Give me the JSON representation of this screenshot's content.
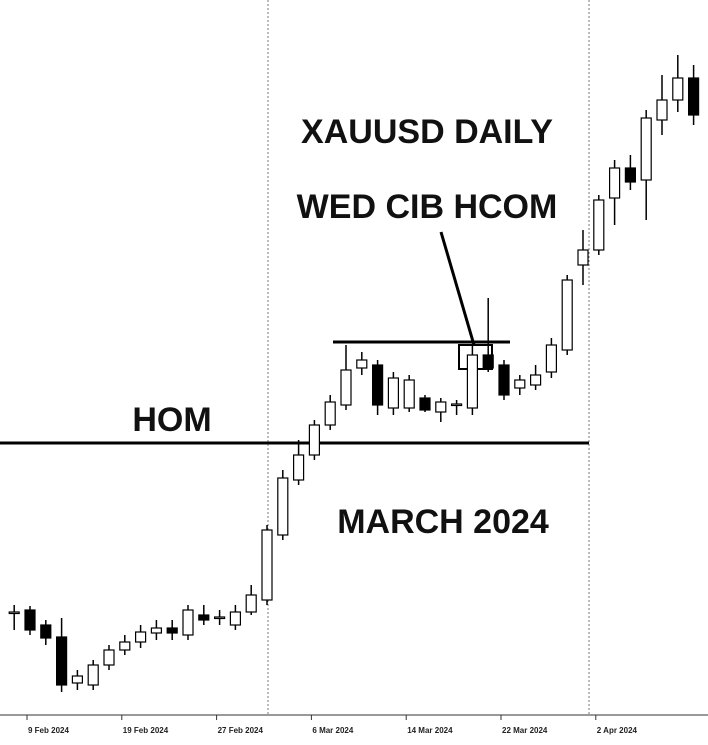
{
  "chart_data": {
    "type": "candlestick",
    "annotations": [
      "XAUUSD DAILY",
      "WED CIB HCOM",
      "HOM",
      "MARCH 2024"
    ],
    "categories": [
      null,
      "9 Feb 2024",
      null,
      null,
      null,
      null,
      null,
      "19 Feb 2024",
      null,
      null,
      null,
      null,
      null,
      "27 Feb 2024",
      null,
      null,
      null,
      null,
      null,
      "6 Mar 2024",
      null,
      null,
      null,
      null,
      null,
      "14 Mar 2024",
      null,
      null,
      null,
      null,
      null,
      "22 Mar 2024",
      null,
      null,
      null,
      null,
      null,
      "2 Apr 2024",
      null,
      null,
      null,
      null,
      null,
      null
    ],
    "open": [
      1863,
      1865,
      1850,
      1838,
      1792,
      1790,
      1810,
      1825,
      1833,
      1842,
      1847,
      1840,
      1860,
      1857,
      1850,
      1863,
      1875,
      1940,
      1995,
      2020,
      2050,
      2070,
      2107,
      2110,
      2067,
      2067,
      2077,
      2063,
      2070,
      2067,
      2120,
      2110,
      2087,
      2090,
      2103,
      2125,
      2210,
      2225,
      2277,
      2307,
      2295,
      2355,
      2375,
      2397
    ],
    "high": [
      1870,
      1869,
      1855,
      1857,
      1805,
      1815,
      1830,
      1840,
      1850,
      1855,
      1855,
      1870,
      1870,
      1865,
      1870,
      1890,
      1950,
      2005,
      2035,
      2055,
      2080,
      2130,
      2123,
      2115,
      2103,
      2100,
      2080,
      2077,
      2075,
      2130,
      2177,
      2115,
      2100,
      2110,
      2137,
      2200,
      2245,
      2280,
      2315,
      2320,
      2365,
      2400,
      2420,
      2410
    ],
    "low": [
      1845,
      1840,
      1830,
      1783,
      1785,
      1785,
      1805,
      1820,
      1827,
      1835,
      1835,
      1835,
      1850,
      1850,
      1845,
      1860,
      1870,
      1935,
      1990,
      2015,
      2045,
      2065,
      2100,
      2060,
      2060,
      2063,
      2063,
      2053,
      2060,
      2060,
      2103,
      2075,
      2080,
      2085,
      2097,
      2120,
      2190,
      2220,
      2250,
      2285,
      2255,
      2340,
      2363,
      2350
    ],
    "close": [
      1863,
      1845,
      1837,
      1790,
      1799,
      1810,
      1825,
      1833,
      1843,
      1847,
      1842,
      1865,
      1855,
      1858,
      1863,
      1880,
      1945,
      1997,
      2020,
      2050,
      2073,
      2105,
      2115,
      2070,
      2097,
      2095,
      2065,
      2073,
      2071,
      2120,
      2107,
      2080,
      2095,
      2100,
      2130,
      2195,
      2225,
      2275,
      2307,
      2293,
      2357,
      2375,
      2397,
      2360
    ],
    "ylim": [
      1760,
      2475
    ],
    "up_color": "#ffffff",
    "down_color": "#000000"
  }
}
